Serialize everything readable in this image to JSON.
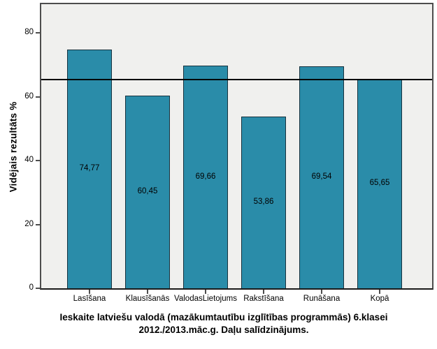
{
  "chart_data": {
    "type": "bar",
    "title_lines": [
      "Ieskaite latviešu valodā (mazākumtautību izglītības programmās) 6.klasei",
      "2012./2013.māc.g. Daļu salīdzinājums."
    ],
    "ylabel": "Vidējais rezultāts %",
    "xlabel": "",
    "categories": [
      "Lasīšana",
      "Klausīšanās",
      "ValodasLietojums",
      "Rakstīšana",
      "Runāšana",
      "Kopā"
    ],
    "values": [
      74.77,
      60.45,
      69.66,
      53.86,
      69.54,
      65.65
    ],
    "value_labels": [
      "74,77",
      "60,45",
      "69,66",
      "53,86",
      "69,54",
      "65,65"
    ],
    "yticks": [
      0,
      20,
      40,
      60,
      80
    ],
    "ylim": [
      0,
      89
    ],
    "reference_line": 65.65,
    "grid": false,
    "legend": null,
    "colors": {
      "bar_fill": "#2A8CA9",
      "bar_stroke": "#17323E",
      "plot_background": "#F0F0EE",
      "frame": "#4D4D4D",
      "axis_line": "#1A1A1A",
      "reference_line": "#000000",
      "text": "#000000"
    }
  }
}
